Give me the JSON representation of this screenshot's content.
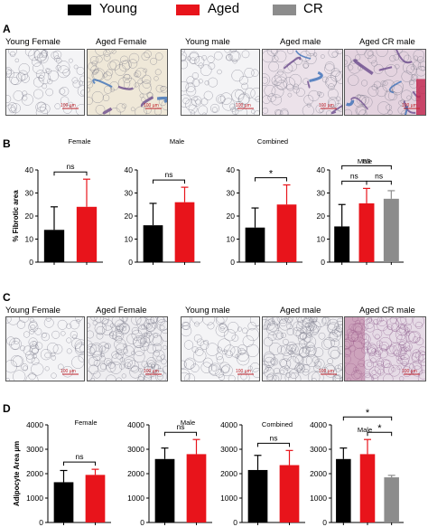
{
  "legend": [
    {
      "label": "Young",
      "color": "#000000"
    },
    {
      "label": "Aged",
      "color": "#e8141b"
    },
    {
      "label": "CR",
      "color": "#8c8c8c"
    }
  ],
  "panels": {
    "A": {
      "letter": "A",
      "images": [
        {
          "label": "Young Female",
          "scale": "100 µm",
          "style": "plain"
        },
        {
          "label": "Aged Female",
          "scale": "100 µm",
          "style": "stained"
        },
        {
          "label": "Young male",
          "scale": "100 µm",
          "style": "plain"
        },
        {
          "label": "Aged male",
          "scale": "100 µm",
          "style": "fibrotic"
        },
        {
          "label": "Aged CR male",
          "scale": "100 µm",
          "style": "fibrotic-heavy"
        }
      ]
    },
    "B": {
      "letter": "B"
    },
    "C": {
      "letter": "C",
      "images": [
        {
          "label": "Young Female",
          "scale": "100 µm",
          "style": "plain"
        },
        {
          "label": "Aged Female",
          "scale": "100 µm",
          "style": "dense"
        },
        {
          "label": "Young male",
          "scale": "100 µm",
          "style": "plain"
        },
        {
          "label": "Aged male",
          "scale": "100 µm",
          "style": "dense"
        },
        {
          "label": "Aged CR male",
          "scale": "100 µm",
          "style": "purple"
        }
      ]
    },
    "D": {
      "letter": "D"
    }
  },
  "chart_data": [
    {
      "panel": "B",
      "type": "bar",
      "title": "Female",
      "ylabel": "% Fibrotic area",
      "ylim": [
        0,
        40
      ],
      "yticks": [
        0,
        10,
        20,
        30,
        40
      ],
      "categories": [
        "Young",
        "Aged"
      ],
      "values": [
        14,
        24
      ],
      "errors": [
        10,
        12
      ],
      "sig": [
        {
          "from": 0,
          "to": 1,
          "text": "ns",
          "level": 0
        }
      ]
    },
    {
      "panel": "B",
      "type": "bar",
      "title": "Male",
      "ylabel": "",
      "ylim": [
        0,
        40
      ],
      "yticks": [
        0,
        10,
        20,
        30,
        40
      ],
      "categories": [
        "Young",
        "Aged"
      ],
      "values": [
        16,
        26
      ],
      "errors": [
        9.5,
        6.5
      ],
      "sig": [
        {
          "from": 0,
          "to": 1,
          "text": "ns",
          "level": 0
        }
      ]
    },
    {
      "panel": "B",
      "type": "bar",
      "title": "Combined",
      "ylabel": "",
      "ylim": [
        0,
        40
      ],
      "yticks": [
        0,
        10,
        20,
        30,
        40
      ],
      "categories": [
        "Young",
        "Aged"
      ],
      "values": [
        15,
        25
      ],
      "errors": [
        8.5,
        8.5
      ],
      "sig": [
        {
          "from": 0,
          "to": 1,
          "text": "*",
          "level": 0
        }
      ]
    },
    {
      "panel": "B",
      "type": "bar",
      "title": "Male",
      "ylabel": "",
      "ylim": [
        0,
        40
      ],
      "yticks": [
        0,
        10,
        20,
        30,
        40
      ],
      "categories": [
        "Young",
        "Aged",
        "CR"
      ],
      "values": [
        15.5,
        25.5,
        27.5
      ],
      "errors": [
        9.5,
        6.5,
        3.5
      ],
      "sig": [
        {
          "from": 0,
          "to": 1,
          "text": "ns",
          "level": 0
        },
        {
          "from": 1,
          "to": 2,
          "text": "ns",
          "level": 0
        },
        {
          "from": 0,
          "to": 2,
          "text": "ns",
          "level": 1
        }
      ]
    },
    {
      "panel": "D",
      "type": "bar",
      "title": "Female",
      "ylabel": "Adipocyte Area µm",
      "ylim": [
        0,
        4000
      ],
      "yticks": [
        0,
        1000,
        2000,
        3000,
        4000
      ],
      "categories": [
        "Young",
        "Aged"
      ],
      "values": [
        1650,
        1950
      ],
      "errors": [
        480,
        230
      ],
      "sig": [
        {
          "from": 0,
          "to": 1,
          "text": "ns",
          "level": 0
        }
      ]
    },
    {
      "panel": "D",
      "type": "bar",
      "title": "Male",
      "ylabel": "",
      "ylim": [
        0,
        4000
      ],
      "yticks": [
        0,
        1000,
        2000,
        3000,
        4000
      ],
      "categories": [
        "Young",
        "Aged"
      ],
      "values": [
        2600,
        2800
      ],
      "errors": [
        450,
        600
      ],
      "sig": [
        {
          "from": 0,
          "to": 1,
          "text": "ns",
          "level": 0
        }
      ]
    },
    {
      "panel": "D",
      "type": "bar",
      "title": "Combined",
      "ylabel": "",
      "ylim": [
        0,
        4000
      ],
      "yticks": [
        0,
        1000,
        2000,
        3000,
        4000
      ],
      "categories": [
        "Young",
        "Aged"
      ],
      "values": [
        2150,
        2350
      ],
      "errors": [
        600,
        600
      ],
      "sig": [
        {
          "from": 0,
          "to": 1,
          "text": "ns",
          "level": 0
        }
      ]
    },
    {
      "panel": "D",
      "type": "bar",
      "title": "Male",
      "ylabel": "",
      "ylim": [
        0,
        4000
      ],
      "yticks": [
        0,
        1000,
        2000,
        3000,
        4000
      ],
      "categories": [
        "Young",
        "Aged",
        "CR"
      ],
      "values": [
        2600,
        2800,
        1850
      ],
      "errors": [
        450,
        600,
        80
      ],
      "sig": [
        {
          "from": 1,
          "to": 2,
          "text": "*",
          "level": 0
        },
        {
          "from": 0,
          "to": 2,
          "text": "*",
          "level": 1
        }
      ]
    }
  ]
}
